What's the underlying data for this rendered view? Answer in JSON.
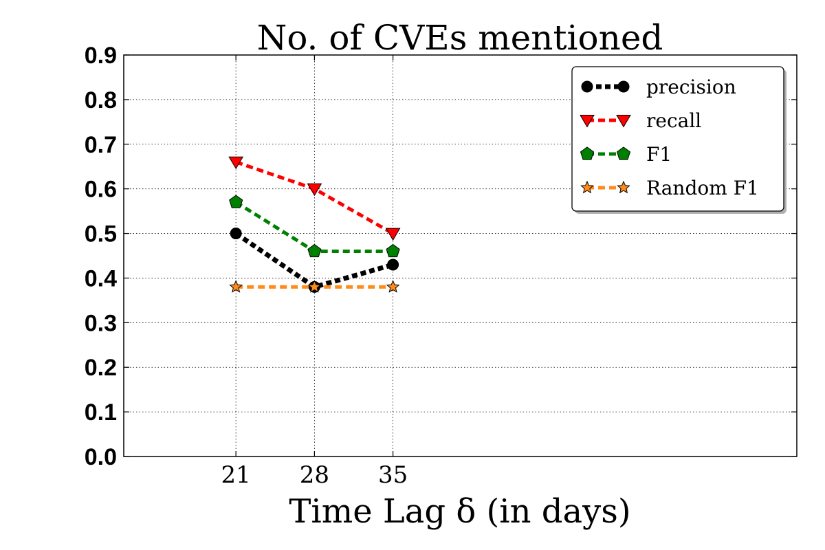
{
  "chart_data": {
    "type": "line",
    "title": "No. of CVEs mentioned",
    "xlabel": "Time Lag δ (in days)",
    "ylabel": "",
    "x": [
      21,
      28,
      35
    ],
    "x_tick_labels": [
      "21",
      "28",
      "35"
    ],
    "xlim": [
      11,
      71
    ],
    "ylim": [
      0,
      0.9
    ],
    "y_tick_labels": [
      "0.0",
      "0.1",
      "0.2",
      "0.3",
      "0.4",
      "0.5",
      "0.6",
      "0.7",
      "0.8",
      "0.9"
    ],
    "grid": true,
    "legend_position": "top-right",
    "series": [
      {
        "name": "precision",
        "values": [
          0.5,
          0.38,
          0.43
        ],
        "color": "#000000",
        "marker": "circle"
      },
      {
        "name": "recall",
        "values": [
          0.66,
          0.6,
          0.5
        ],
        "color": "#ff0000",
        "marker": "triangle-down"
      },
      {
        "name": "F1",
        "values": [
          0.57,
          0.46,
          0.46
        ],
        "color": "#008000",
        "marker": "pentagon"
      },
      {
        "name": "Random F1",
        "values": [
          0.38,
          0.38,
          0.38
        ],
        "color": "#ff8c1a",
        "marker": "star"
      }
    ]
  }
}
